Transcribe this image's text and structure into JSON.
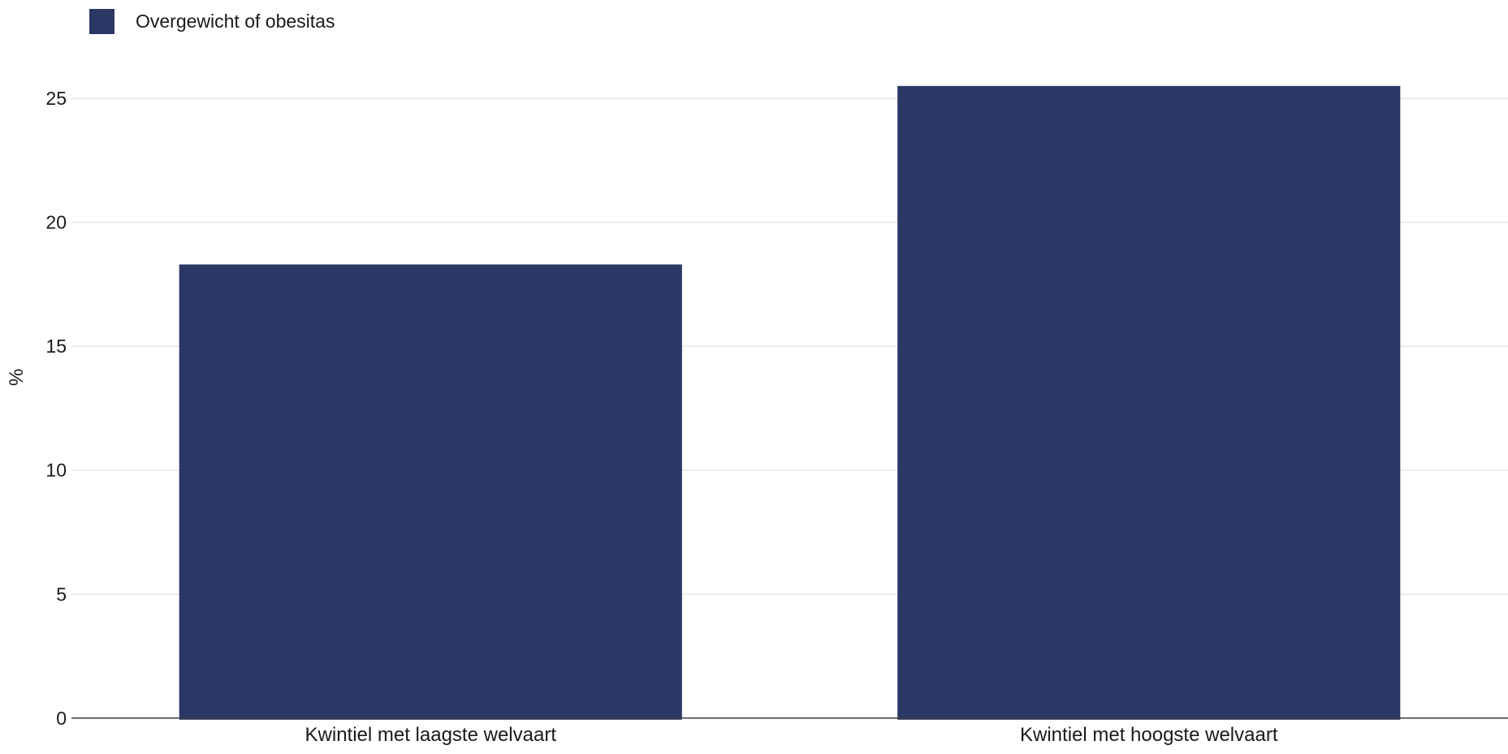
{
  "chart_data": {
    "type": "bar",
    "categories": [
      "Kwintiel met laagste welvaart",
      "Kwintiel met hoogste welvaart"
    ],
    "series": [
      {
        "name": "Overgewicht of obesitas",
        "values": [
          18.3,
          25.5
        ],
        "color": "#2b3866"
      }
    ],
    "xlabel": "",
    "ylabel": "%",
    "ylim": [
      0,
      27.5
    ],
    "yticks": [
      0,
      5,
      10,
      15,
      20,
      25
    ],
    "grid": true,
    "legend_position": "top-left"
  }
}
